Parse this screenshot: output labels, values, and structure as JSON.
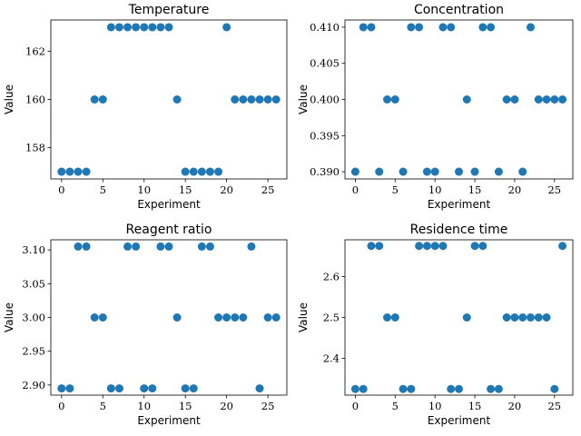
{
  "chart_data": [
    {
      "type": "scatter",
      "title": "Temperature",
      "xlabel": "Experiment",
      "ylabel": "Value",
      "xlim": [
        -1.3,
        27.3
      ],
      "ylim": [
        156.7,
        163.3
      ],
      "xticks": [
        0,
        5,
        10,
        15,
        20,
        25
      ],
      "yticks": [
        158,
        160,
        162
      ],
      "grid": false,
      "color": "#1f77b4",
      "series": [
        {
          "x": [
            0,
            1,
            2,
            3,
            4,
            5,
            6,
            7,
            8,
            9,
            10,
            11,
            12,
            13,
            14,
            15,
            16,
            17,
            18,
            19,
            20,
            21,
            22,
            23,
            24,
            25,
            26
          ],
          "values": [
            157,
            157,
            157,
            157,
            160,
            160,
            163,
            163,
            163,
            163,
            163,
            163,
            163,
            163,
            160,
            157,
            157,
            157,
            157,
            157,
            163,
            160,
            160,
            160,
            160,
            160,
            160
          ]
        }
      ]
    },
    {
      "type": "scatter",
      "title": "Concentration",
      "xlabel": "Experiment",
      "ylabel": "Value",
      "xlim": [
        -1.3,
        27.3
      ],
      "ylim": [
        0.389,
        0.411
      ],
      "xticks": [
        0,
        5,
        10,
        15,
        20,
        25
      ],
      "yticks": [
        0.39,
        0.395,
        0.4,
        0.405,
        0.41
      ],
      "ytick_labels": [
        "0.390",
        "0.395",
        "0.400",
        "0.405",
        "0.410"
      ],
      "grid": false,
      "color": "#1f77b4",
      "series": [
        {
          "x": [
            0,
            1,
            2,
            3,
            4,
            5,
            6,
            7,
            8,
            9,
            10,
            11,
            12,
            13,
            14,
            15,
            16,
            17,
            18,
            19,
            20,
            21,
            22,
            23,
            24,
            25,
            26
          ],
          "values": [
            0.39,
            0.41,
            0.41,
            0.39,
            0.4,
            0.4,
            0.39,
            0.41,
            0.41,
            0.39,
            0.39,
            0.41,
            0.41,
            0.39,
            0.4,
            0.39,
            0.41,
            0.41,
            0.39,
            0.4,
            0.4,
            0.39,
            0.41,
            0.4,
            0.4,
            0.4,
            0.4
          ]
        }
      ]
    },
    {
      "type": "scatter",
      "title": "Reagent ratio",
      "xlabel": "Experiment",
      "ylabel": "Value",
      "xlim": [
        -1.3,
        27.3
      ],
      "ylim": [
        2.885,
        3.115
      ],
      "xticks": [
        0,
        5,
        10,
        15,
        20,
        25
      ],
      "yticks": [
        2.9,
        2.95,
        3.0,
        3.05,
        3.1
      ],
      "ytick_labels": [
        "2.90",
        "2.95",
        "3.00",
        "3.05",
        "3.10"
      ],
      "grid": false,
      "color": "#1f77b4",
      "series": [
        {
          "x": [
            0,
            1,
            2,
            3,
            4,
            5,
            6,
            7,
            8,
            9,
            10,
            11,
            12,
            13,
            14,
            15,
            16,
            17,
            18,
            19,
            20,
            21,
            22,
            23,
            24,
            25,
            26
          ],
          "values": [
            2.895,
            2.895,
            3.105,
            3.105,
            3.0,
            3.0,
            2.895,
            2.895,
            3.105,
            3.105,
            2.895,
            2.895,
            3.105,
            3.105,
            3.0,
            2.895,
            2.895,
            3.105,
            3.105,
            3.0,
            3.0,
            3.0,
            3.0,
            3.105,
            2.895,
            3.0,
            3.0
          ]
        }
      ]
    },
    {
      "type": "scatter",
      "title": "Residence time",
      "xlabel": "Experiment",
      "ylabel": "Value",
      "xlim": [
        -1.3,
        27.3
      ],
      "ylim": [
        2.31,
        2.69
      ],
      "xticks": [
        0,
        5,
        10,
        15,
        20,
        25
      ],
      "yticks": [
        2.4,
        2.5,
        2.6
      ],
      "grid": false,
      "color": "#1f77b4",
      "series": [
        {
          "x": [
            0,
            1,
            2,
            3,
            4,
            5,
            6,
            7,
            8,
            9,
            10,
            11,
            12,
            13,
            14,
            15,
            16,
            17,
            18,
            19,
            20,
            21,
            22,
            23,
            24,
            25,
            26
          ],
          "values": [
            2.325,
            2.325,
            2.675,
            2.675,
            2.5,
            2.5,
            2.325,
            2.325,
            2.675,
            2.675,
            2.675,
            2.675,
            2.325,
            2.325,
            2.5,
            2.675,
            2.675,
            2.325,
            2.325,
            2.5,
            2.5,
            2.5,
            2.5,
            2.5,
            2.5,
            2.325,
            2.675
          ]
        }
      ]
    }
  ]
}
